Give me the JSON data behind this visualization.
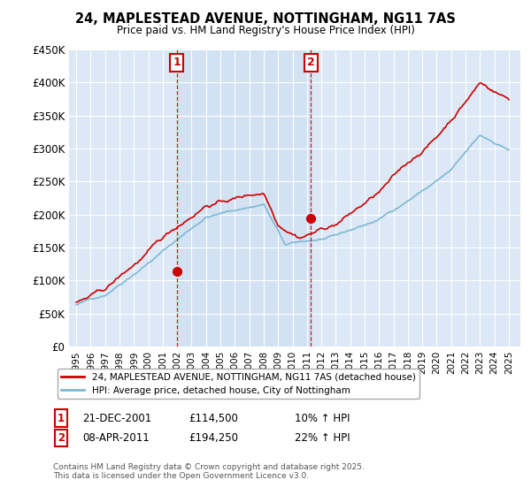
{
  "title_line1": "24, MAPLESTEAD AVENUE, NOTTINGHAM, NG11 7AS",
  "title_line2": "Price paid vs. HM Land Registry's House Price Index (HPI)",
  "plot_bg_color": "#dce8f5",
  "shade_color": "#c8ddf0",
  "ylim": [
    0,
    450000
  ],
  "yticks": [
    0,
    50000,
    100000,
    150000,
    200000,
    250000,
    300000,
    350000,
    400000,
    450000
  ],
  "ytick_labels": [
    "£0",
    "£50K",
    "£100K",
    "£150K",
    "£200K",
    "£250K",
    "£300K",
    "£350K",
    "£400K",
    "£450K"
  ],
  "hpi_color": "#7eb8d4",
  "sale_color": "#cc0000",
  "marker1_x": 2001.97,
  "marker1_y": 114500,
  "marker2_x": 2011.27,
  "marker2_y": 194250,
  "vline1_x": 2001.97,
  "vline2_x": 2011.27,
  "annotation1_date": "21-DEC-2001",
  "annotation1_price": "£114,500",
  "annotation1_hpi": "10% ↑ HPI",
  "annotation2_date": "08-APR-2011",
  "annotation2_price": "£194,250",
  "annotation2_hpi": "22% ↑ HPI",
  "legend_label1": "24, MAPLESTEAD AVENUE, NOTTINGHAM, NG11 7AS (detached house)",
  "legend_label2": "HPI: Average price, detached house, City of Nottingham",
  "footer": "Contains HM Land Registry data © Crown copyright and database right 2025.\nThis data is licensed under the Open Government Licence v3.0.",
  "xmin": 1994.5,
  "xmax": 2025.8
}
